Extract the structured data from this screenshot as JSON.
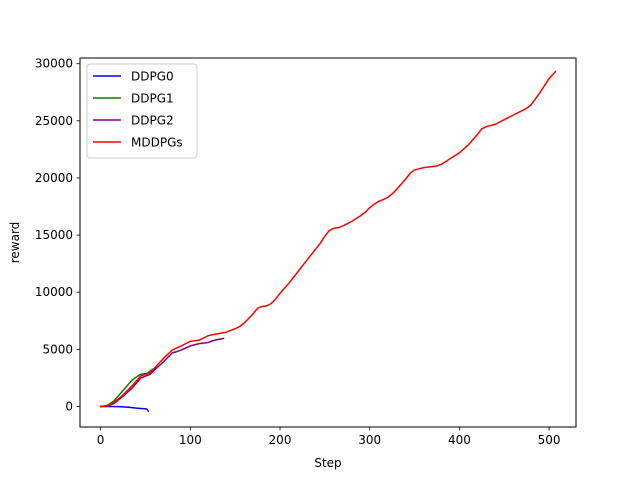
{
  "chart_data": {
    "type": "line",
    "title": "",
    "xlabel": "Step",
    "ylabel": "reward",
    "xlim": [
      -23,
      530
    ],
    "ylim": [
      -1800,
      30500
    ],
    "xticks": [
      0,
      100,
      200,
      300,
      400,
      500
    ],
    "yticks": [
      0,
      5000,
      10000,
      15000,
      20000,
      25000,
      30000
    ],
    "grid": false,
    "legend_position": "top-left",
    "series": [
      {
        "name": "DDPG0",
        "color": "#0000ff",
        "x": [
          0,
          10,
          20,
          30,
          40,
          45,
          50,
          52,
          53
        ],
        "y": [
          0,
          0,
          -20,
          -60,
          -150,
          -180,
          -200,
          -250,
          -400
        ]
      },
      {
        "name": "DDPG1",
        "color": "#008000",
        "x": [
          0,
          8,
          15,
          25,
          35,
          44,
          48,
          52,
          56,
          60
        ],
        "y": [
          0,
          100,
          500,
          1400,
          2300,
          2800,
          2850,
          2900,
          3150,
          3350
        ]
      },
      {
        "name": "DDPG2",
        "color": "#800080",
        "x": [
          0,
          8,
          15,
          25,
          35,
          45,
          50,
          55,
          60,
          70,
          80,
          85,
          90,
          100,
          110,
          120,
          125,
          130,
          137
        ],
        "y": [
          0,
          50,
          250,
          900,
          1600,
          2500,
          2650,
          2800,
          3200,
          3900,
          4700,
          4800,
          4950,
          5300,
          5500,
          5600,
          5750,
          5850,
          5950
        ]
      },
      {
        "name": "MDDPGs",
        "color": "#ff0000",
        "x": [
          0,
          8,
          15,
          25,
          35,
          45,
          50,
          55,
          60,
          70,
          80,
          90,
          100,
          110,
          120,
          130,
          140,
          150,
          155,
          160,
          165,
          170,
          175,
          180,
          185,
          190,
          195,
          200,
          210,
          220,
          230,
          240,
          245,
          250,
          255,
          260,
          265,
          270,
          280,
          290,
          295,
          300,
          305,
          310,
          315,
          320,
          325,
          330,
          340,
          345,
          350,
          360,
          370,
          375,
          380,
          390,
          400,
          410,
          420,
          425,
          430,
          440,
          450,
          460,
          470,
          475,
          480,
          490,
          500,
          507
        ],
        "y": [
          0,
          50,
          350,
          1000,
          1800,
          2700,
          2800,
          2950,
          3350,
          4200,
          4950,
          5300,
          5700,
          5800,
          6200,
          6350,
          6500,
          6800,
          7000,
          7300,
          7700,
          8100,
          8600,
          8750,
          8800,
          9000,
          9400,
          9900,
          10800,
          11800,
          12800,
          13800,
          14300,
          14900,
          15400,
          15600,
          15650,
          15800,
          16200,
          16700,
          17000,
          17400,
          17700,
          17950,
          18100,
          18300,
          18600,
          19000,
          19900,
          20400,
          20700,
          20900,
          21000,
          21050,
          21200,
          21700,
          22200,
          22900,
          23800,
          24300,
          24500,
          24700,
          25100,
          25500,
          25900,
          26100,
          26400,
          27500,
          28700,
          29300
        ]
      }
    ]
  }
}
